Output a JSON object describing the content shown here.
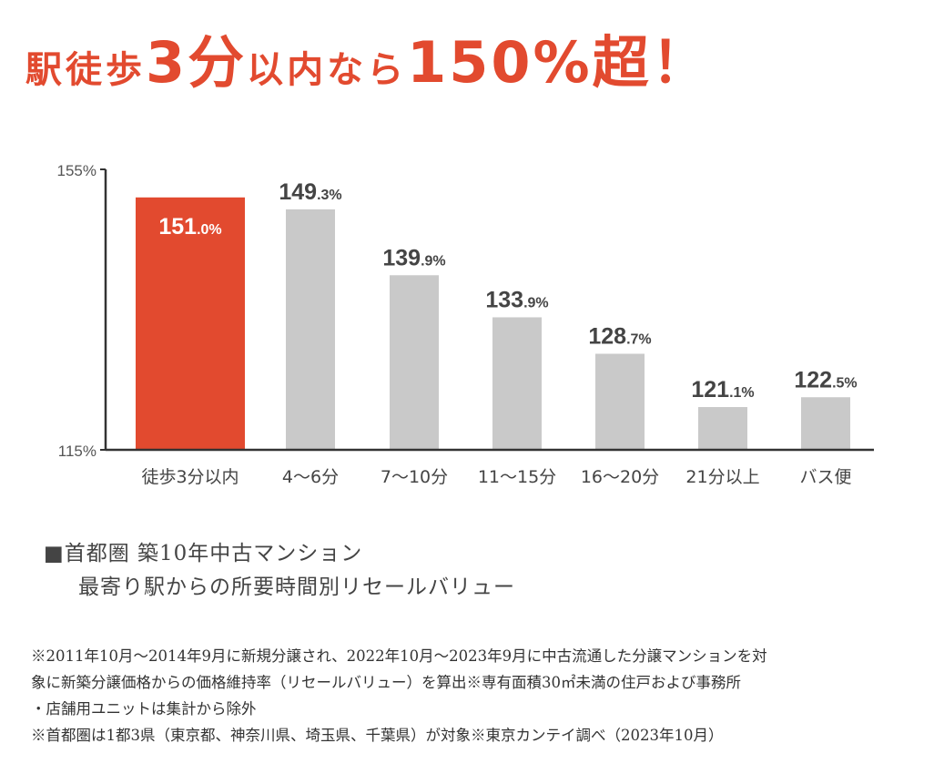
{
  "headline": {
    "part1": "駅徒歩",
    "part2": "3分",
    "part3": "以内なら",
    "part4": "150%超！"
  },
  "chart_data": {
    "type": "bar",
    "categories": [
      "徒歩3分以内",
      "4〜6分",
      "7〜10分",
      "11〜15分",
      "16〜20分",
      "21分以上",
      "バス便"
    ],
    "values": [
      151.0,
      149.3,
      139.9,
      133.9,
      128.7,
      121.1,
      122.5
    ],
    "value_labels": [
      {
        "main": "151",
        "dec": ".0%"
      },
      {
        "main": "149",
        "dec": ".3%"
      },
      {
        "main": "139",
        "dec": ".9%"
      },
      {
        "main": "133",
        "dec": ".9%"
      },
      {
        "main": "128",
        "dec": ".7%"
      },
      {
        "main": "121",
        "dec": ".1%"
      },
      {
        "main": "122",
        "dec": ".5%"
      }
    ],
    "ylim": [
      115,
      155
    ],
    "y_ticks": [
      "155%",
      "115%"
    ],
    "title": "",
    "xlabel": "",
    "ylabel": "",
    "grid": false,
    "highlight_color": "#e24a2f",
    "bar_color": "#c9c9c9"
  },
  "caption": {
    "line1": "■首都圏 築10年中古マンション",
    "line2": "最寄り駅からの所要時間別リセールバリュー"
  },
  "notes": [
    "※2011年10月〜2014年9月に新規分譲され、2022年10月〜2023年9月に中古流通した分譲マンションを対",
    "象に新築分譲価格からの価格維持率（リセールバリュー）を算出※専有面積30㎡未満の住戸および事務所",
    "・店舗用ユニットは集計から除外",
    "※首都圏は1都3県（東京都、神奈川県、埼玉県、千葉県）が対象※東京カンテイ調べ（2023年10月）"
  ]
}
